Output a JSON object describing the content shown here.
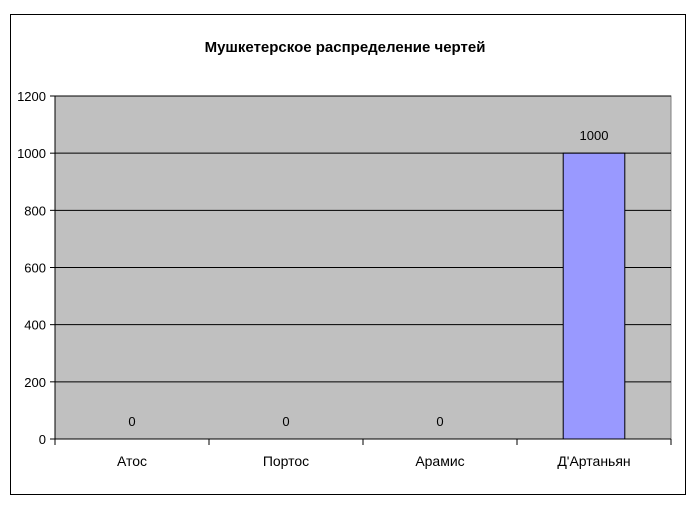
{
  "chart_data": {
    "type": "bar",
    "title": "Мушкетерское распределение чертей",
    "xlabel": "",
    "ylabel": "",
    "categories": [
      "Атос",
      "Портос",
      "Арамис",
      "Д'Артаньян"
    ],
    "values": [
      0,
      0,
      0,
      1000
    ],
    "data_labels": [
      "0",
      "0",
      "0",
      "1000"
    ],
    "ylim": [
      0,
      1200
    ],
    "yticks": [
      0,
      200,
      400,
      600,
      800,
      1000,
      1200
    ],
    "ytick_labels": [
      "0",
      "200",
      "400",
      "600",
      "800",
      "1000",
      "1200"
    ],
    "grid": true,
    "legend": "none",
    "colors": {
      "plot_background": "#c0c0c0",
      "bar_fill": "#9999ff",
      "bar_stroke": "#000000",
      "gridline": "#000000"
    }
  }
}
